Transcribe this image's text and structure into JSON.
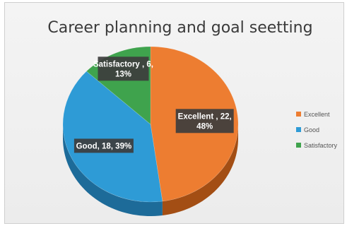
{
  "chart_data": {
    "type": "pie",
    "title": "Career planning and goal seetting",
    "categories": [
      "Excellent",
      "Good",
      "Satisfactory"
    ],
    "values": [
      22,
      18,
      6
    ],
    "percents": [
      "48%",
      "39%",
      "13%"
    ],
    "data_labels": [
      [
        "Excellent , 22,",
        "48%"
      ],
      [
        "Good, 18, 39%"
      ],
      [
        "Satisfactory , 6,",
        "13%"
      ]
    ],
    "colors": [
      "#ED7D31",
      "#2E9BD6",
      "#3FA34D"
    ],
    "side_colors": [
      "#A34E14",
      "#1D6B99",
      "#2A7334"
    ],
    "legend_position": "right",
    "start_angle_deg": 0,
    "direction": "clockwise",
    "style": "3d"
  }
}
